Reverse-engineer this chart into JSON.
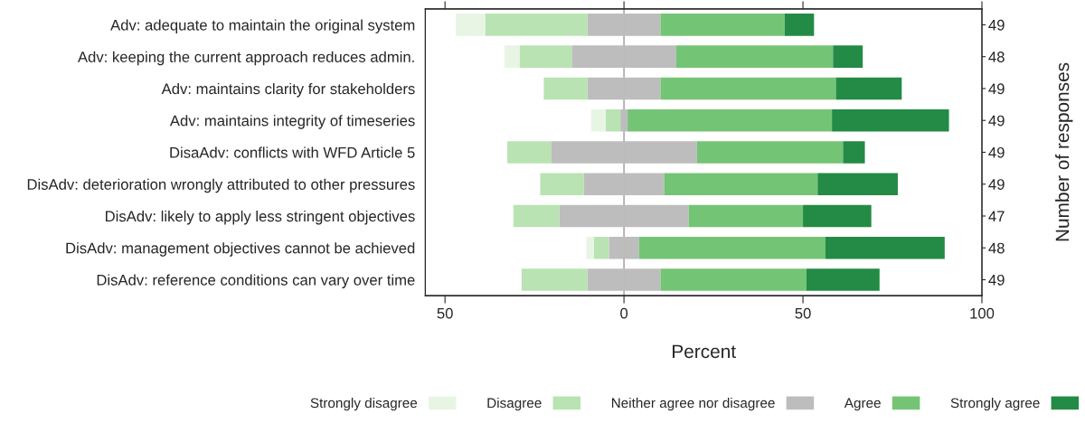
{
  "chart_data": {
    "type": "bar",
    "orientation": "horizontal",
    "stacked": true,
    "categories": [
      "Adv: adequate to maintain the original system",
      "Adv: keeping the current approach reduces admin.",
      "Adv: maintains clarity for stakeholders",
      "Adv: maintains integrity of timeseries",
      "DisaAdv: conflicts with WFD Article 5",
      "DisAdv: deterioration wrongly attributed to other pressures",
      "DisAdv: likely to apply less stringent objectives",
      "DisAdv: management objectives cannot be achieved",
      "DisAdv: reference conditions can vary over time"
    ],
    "series": [
      {
        "name": "Neither agree nor disagree",
        "color": "#bdbdbd",
        "values": [
          -10.2,
          -14.6,
          -10.2,
          -1.0,
          -20.4,
          -11.2,
          -18.1,
          -4.2,
          -10.2
        ]
      },
      {
        "name": "Disagree",
        "color": "#b9e3b2",
        "values": [
          -28.6,
          -14.6,
          -12.2,
          -4.1,
          -12.2,
          -12.2,
          -12.8,
          -4.2,
          -18.4
        ]
      },
      {
        "name": "Strongly disagree",
        "color": "#e8f5e4",
        "values": [
          -8.2,
          -4.2,
          null,
          -4.1,
          null,
          null,
          null,
          -2.1,
          null
        ]
      },
      {
        "color": "#bdbdbd",
        "values": [
          10.2,
          14.6,
          10.2,
          1.0,
          20.4,
          11.2,
          18.1,
          4.2,
          10.2
        ]
      },
      {
        "name": "Agree",
        "color": "#74c476",
        "values": [
          34.7,
          43.8,
          49.0,
          57.1,
          40.8,
          42.9,
          31.9,
          52.1,
          40.8
        ]
      },
      {
        "name": "Strongly agree",
        "color": "#238b45",
        "values": [
          8.2,
          8.3,
          18.4,
          32.7,
          6.1,
          22.4,
          19.1,
          33.3,
          20.4
        ]
      }
    ],
    "y2_categories": [
      "49",
      "48",
      "49",
      "49",
      "49",
      "49",
      "47",
      "48",
      "49"
    ],
    "y2label": "Number of responses",
    "xlabel": "Percent",
    "xlim": [
      -55.5,
      100
    ],
    "xticks": [
      {
        "value": -50,
        "label": "50"
      },
      0,
      50,
      100
    ],
    "ref_lines": [
      {
        "axis": "x",
        "value": 0,
        "color": "#aaaaaa"
      }
    ],
    "legend": "bottom",
    "grid": false
  }
}
